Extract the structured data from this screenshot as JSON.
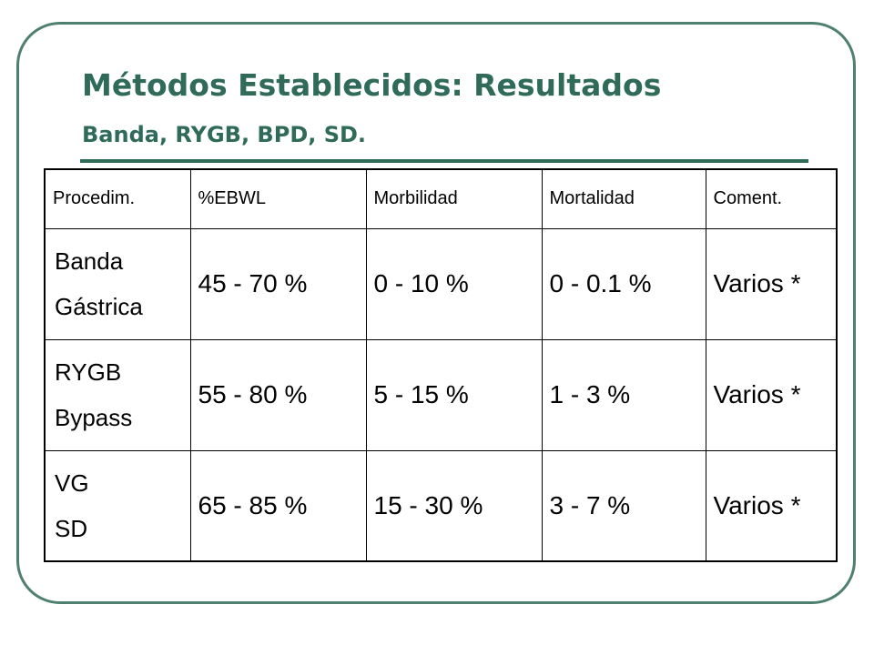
{
  "slide": {
    "title": "Métodos Establecidos: Resultados",
    "subtitle": "Banda, RYGB, BPD, SD."
  },
  "table": {
    "headers": [
      "Procedim.",
      "%EBWL",
      "Morbilidad",
      "Mortalidad",
      "Coment."
    ],
    "rows": [
      {
        "procedure": [
          "Banda",
          "Gástrica"
        ],
        "ebwl": "45 - 70 %",
        "morbilidad": "0 - 10 %",
        "mortalidad": "0 - 0.1 %",
        "coment": "Varios *"
      },
      {
        "procedure": [
          "RYGB",
          "Bypass"
        ],
        "ebwl": "55 - 80 %",
        "morbilidad": "5 - 15 %",
        "mortalidad": "1 - 3 %",
        "coment": "Varios *"
      },
      {
        "procedure": [
          "VG",
          "SD"
        ],
        "ebwl": "65 - 85 %",
        "morbilidad": "15 - 30 %",
        "mortalidad": "3 - 7 %",
        "coment": "Varios *"
      }
    ]
  },
  "colors": {
    "frame": "#4f7f6d",
    "title": "#2f6b58"
  }
}
